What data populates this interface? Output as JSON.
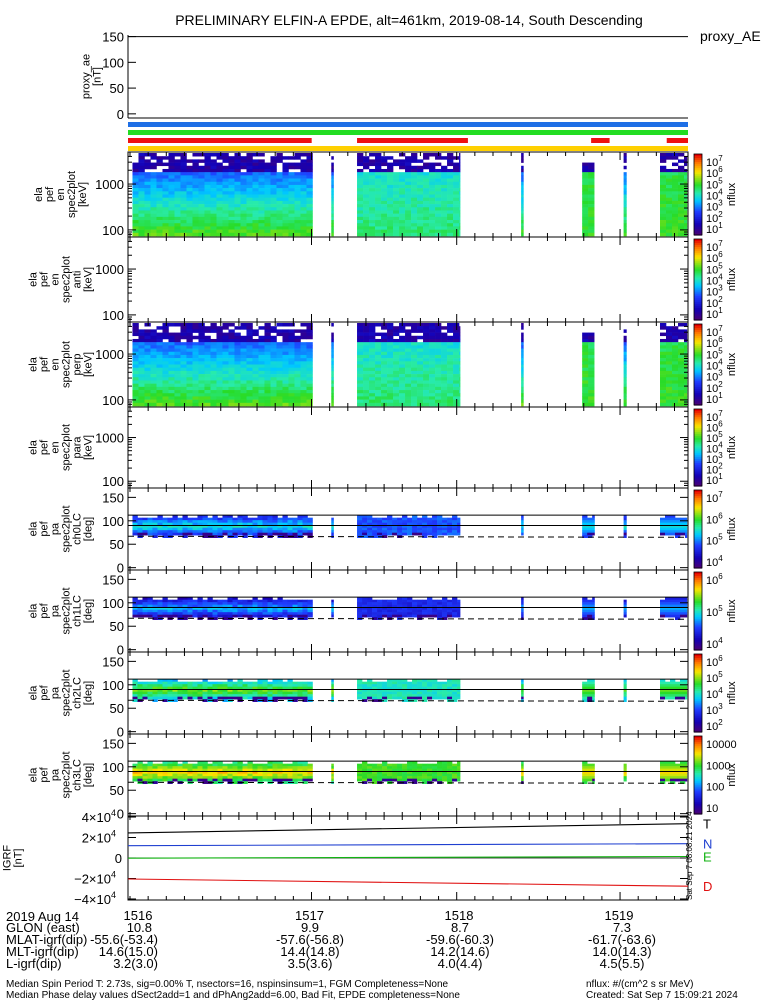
{
  "title": "PRELIMINARY ELFIN-A EPDE, alt=461km, 2019-08-14, South Descending",
  "proxy_ae_label": "proxy_AE",
  "colorbar_label": "nflux",
  "side_stamp": "Sat Sep  7 08:08:21 2024",
  "colors": {
    "bar_blue": "#1e6fe6",
    "bar_green": "#22dd22",
    "bar_red": "#ee1111",
    "bar_yellow": "#ffd000",
    "igrf_T": "#000000",
    "igrf_N": "#1f3fd0",
    "igrf_E": "#12b312",
    "igrf_D": "#e01010"
  },
  "chart_data": [
    {
      "id": "proxy_ae",
      "type": "line",
      "ylabel": "proxy_ae\n[nT]",
      "ylim": [
        -10,
        155
      ],
      "yticks": [
        "150",
        "100",
        "50",
        "0"
      ],
      "series": []
    },
    {
      "id": "status_bars",
      "type": "timeline",
      "bars": [
        {
          "name": "blue",
          "color": "#1e6fe6",
          "segments": [
            [
              0,
              1
            ]
          ]
        },
        {
          "name": "green",
          "color": "#22dd22",
          "segments": [
            [
              0,
              1
            ]
          ]
        },
        {
          "name": "red",
          "color": "#ee1111",
          "segments": [
            [
              0,
              0.328
            ],
            [
              0.409,
              0.607
            ],
            [
              0.827,
              0.86
            ],
            [
              0.962,
              1
            ]
          ]
        },
        {
          "name": "yellow",
          "color": "#ffd000",
          "segments": [
            [
              0,
              1
            ]
          ]
        }
      ]
    },
    {
      "id": "en_spec",
      "type": "heatmap",
      "ylabel": "ela\npef\nen\nspec2plot\n[keV]",
      "yscale": "log",
      "yticks": [
        "1000",
        "100"
      ],
      "pattern": "spectrum",
      "colorbar": {
        "min": "10",
        "max": "10^7",
        "ticks": [
          [
            "10",
            "7"
          ],
          [
            "10",
            "6"
          ],
          [
            "10",
            "5"
          ],
          [
            "10",
            "4"
          ],
          [
            "10",
            "3"
          ],
          [
            "10",
            "2"
          ],
          [
            "10",
            "1"
          ]
        ]
      }
    },
    {
      "id": "anti_spec",
      "type": "heatmap",
      "ylabel": "ela\npef\nen\nspec2plot\nanti\n[keV]",
      "yscale": "log",
      "yticks": [
        "1000",
        "100"
      ],
      "pattern": "empty",
      "colorbar": {
        "ticks": [
          [
            "10",
            "7"
          ],
          [
            "10",
            "6"
          ],
          [
            "10",
            "5"
          ],
          [
            "10",
            "4"
          ],
          [
            "10",
            "3"
          ],
          [
            "10",
            "2"
          ],
          [
            "10",
            "1"
          ]
        ]
      }
    },
    {
      "id": "perp_spec",
      "type": "heatmap",
      "ylabel": "ela\npef\nen\nspec2plot\nperp\n[keV]",
      "yscale": "log",
      "yticks": [
        "1000",
        "100"
      ],
      "pattern": "spectrum",
      "colorbar": {
        "ticks": [
          [
            "10",
            "7"
          ],
          [
            "10",
            "6"
          ],
          [
            "10",
            "5"
          ],
          [
            "10",
            "4"
          ],
          [
            "10",
            "3"
          ],
          [
            "10",
            "2"
          ],
          [
            "10",
            "1"
          ]
        ]
      }
    },
    {
      "id": "para_spec",
      "type": "heatmap",
      "ylabel": "ela\npef\nen\nspec2plot\npara\n[keV]",
      "yscale": "log",
      "yticks": [
        "1000",
        "100"
      ],
      "pattern": "empty",
      "colorbar": {
        "ticks": [
          [
            "10",
            "7"
          ],
          [
            "10",
            "6"
          ],
          [
            "10",
            "5"
          ],
          [
            "10",
            "4"
          ],
          [
            "10",
            "3"
          ],
          [
            "10",
            "2"
          ],
          [
            "10",
            "1"
          ]
        ]
      }
    },
    {
      "id": "ch0LC",
      "type": "heatmap",
      "ylabel": "ela\npef\npa\nspec2plot\nch0LC\n[deg]",
      "ylim": [
        -5,
        170
      ],
      "yticks": [
        "150",
        "100",
        "50",
        "0"
      ],
      "pattern": "pitch",
      "lines": [
        90,
        112
      ],
      "dashed": 67,
      "colorbar": {
        "ticks": [
          [
            "10",
            "7"
          ],
          [
            "10",
            "6"
          ],
          [
            "10",
            "5"
          ],
          [
            "10",
            "4"
          ]
        ]
      }
    },
    {
      "id": "ch1LC",
      "type": "heatmap",
      "ylabel": "ela\npef\npa\nspec2plot\nch1LC\n[deg]",
      "ylim": [
        -5,
        170
      ],
      "yticks": [
        "150",
        "100",
        "50",
        "0"
      ],
      "pattern": "pitch",
      "lines": [
        90,
        112
      ],
      "dashed": 67,
      "colorbar": {
        "ticks": [
          [
            "10",
            "6"
          ],
          [
            "10",
            "5"
          ],
          [
            "10",
            "4"
          ]
        ]
      }
    },
    {
      "id": "ch2LC",
      "type": "heatmap",
      "ylabel": "ela\npef\npa\nspec2plot\nch2LC\n[deg]",
      "ylim": [
        -5,
        170
      ],
      "yticks": [
        "150",
        "100",
        "50",
        "0"
      ],
      "pattern": "pitch",
      "lines": [
        90,
        112
      ],
      "dashed": 67,
      "colorbar": {
        "ticks": [
          [
            "10",
            "6"
          ],
          [
            "10",
            "5"
          ],
          [
            "10",
            "4"
          ],
          [
            "10",
            "3"
          ],
          [
            "10",
            "2"
          ]
        ]
      }
    },
    {
      "id": "ch3LC",
      "type": "heatmap",
      "ylabel": "ela\npef\npa\nspec2plot\nch3LC\n[deg]",
      "ylim": [
        -5,
        170
      ],
      "yticks": [
        "150",
        "100",
        "50",
        "0"
      ],
      "pattern": "pitch",
      "lines": [
        90,
        112
      ],
      "dashed": 67,
      "colorbar": {
        "ticks": [
          [
            "10000"
          ],
          [
            "1000"
          ],
          [
            "100"
          ],
          [
            "10"
          ]
        ]
      }
    },
    {
      "id": "igrf",
      "type": "line",
      "ylabel": "IGRF\n[nT]",
      "ylim": [
        -41000,
        41000
      ],
      "yticks": [
        [
          40000,
          "4×10",
          "4"
        ],
        [
          20000,
          "2×10",
          "4"
        ],
        [
          0,
          "0",
          ""
        ],
        [
          -20000,
          "−2×10",
          "4"
        ],
        [
          -40000,
          "−4×10",
          "4"
        ]
      ],
      "x": [
        0,
        1
      ],
      "series": [
        {
          "name": "T",
          "values": [
            24500,
            33500
          ]
        },
        {
          "name": "N",
          "values": [
            12000,
            14000
          ]
        },
        {
          "name": "E",
          "values": [
            -200,
            1500
          ]
        },
        {
          "name": "D",
          "values": [
            -20500,
            -27500
          ]
        }
      ]
    }
  ],
  "x_axis": {
    "tick_labels": [
      "1516",
      "1517",
      "1518",
      "1519"
    ],
    "date": "2019 Aug 14"
  },
  "ephemeris": [
    {
      "label": "GLON (east)",
      "values": [
        "10.8",
        "9.9",
        "8.7",
        "7.3"
      ]
    },
    {
      "label": "MLAT-igrf(dip)",
      "values": [
        "-55.6(-53.4)",
        "-57.6(-56.8)",
        "-59.6(-60.3)",
        "-61.7(-63.6)"
      ]
    },
    {
      "label": "MLT-igrf(dip)",
      "values": [
        "14.6(15.0)",
        "14.4(14.8)",
        "14.2(14.6)",
        "14.0(14.3)"
      ]
    },
    {
      "label": "L-igrf(dip)",
      "values": [
        "3.2(3.0)",
        "3.5(3.6)",
        "4.0(4.4)",
        "4.5(5.5)"
      ]
    }
  ],
  "footer": {
    "line1": "Median Spin Period T: 2.73s, sig=0.00% T, nsectors=16, nspinsinsum=1, FGM Completeness=None",
    "line2": "Median Phase delay values dSect2add=1 and dPhAng2add=6.00, Bad Fit, EPDE completeness=None",
    "units": "nflux: #/(cm^2 s sr MeV)",
    "created": "Created: Sat Sep  7 15:09:21 2024"
  }
}
